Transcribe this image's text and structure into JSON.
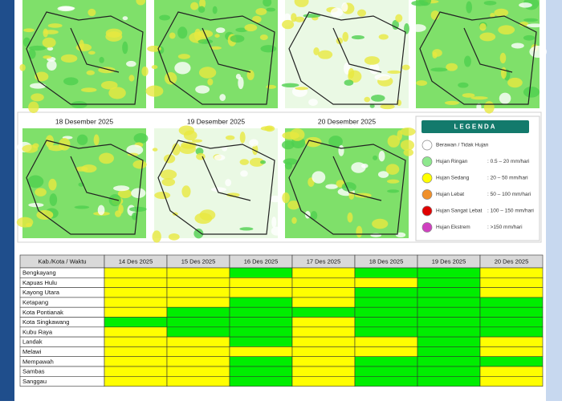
{
  "maps": {
    "titles": [
      null,
      null,
      null,
      null,
      "18 Desember 2025",
      "19 Desember 2025",
      "20 Desember 2025"
    ]
  },
  "legend": {
    "title": "LEGENDA",
    "items": [
      {
        "label": "Berawan / Tidak Hujan",
        "range": "",
        "color": "#ffffff"
      },
      {
        "label": "Hujan Ringan",
        "range": ": 0.5 – 20 mm/hari",
        "color": "#8ee88e"
      },
      {
        "label": "Hujan Sedang",
        "range": ": 20 – 50 mm/hari",
        "color": "#ffff00"
      },
      {
        "label": "Hujan Lebat",
        "range": ": 50 – 100 mm/hari",
        "color": "#f0902a"
      },
      {
        "label": "Hujan Sangat Lebat",
        "range": ": 100 – 150 mm/hari",
        "color": "#e00000"
      },
      {
        "label": "Hujan Ekstrem",
        "range": ": >150 mm/hari",
        "color": "#d040c0"
      }
    ]
  },
  "table": {
    "header": [
      "Kab./Kota / Waktu",
      "14 Des 2025",
      "15 Des 2025",
      "16 Des 2025",
      "17 Des 2025",
      "18 Des 2025",
      "19 Des 2025",
      "20 Des 2025"
    ],
    "colors": {
      "Y": "#ffff00",
      "G": "#00ee00"
    },
    "rows": [
      {
        "name": "Bengkayang",
        "cells": [
          "Y",
          "Y",
          "G",
          "Y",
          "G",
          "G",
          "Y"
        ]
      },
      {
        "name": "Kapuas Hulu",
        "cells": [
          "Y",
          "Y",
          "Y",
          "Y",
          "Y",
          "G",
          "Y"
        ]
      },
      {
        "name": "Kayong Utara",
        "cells": [
          "Y",
          "Y",
          "Y",
          "Y",
          "G",
          "G",
          "Y"
        ]
      },
      {
        "name": "Ketapang",
        "cells": [
          "Y",
          "Y",
          "G",
          "Y",
          "G",
          "G",
          "G"
        ]
      },
      {
        "name": "Kota Pontianak",
        "cells": [
          "Y",
          "G",
          "G",
          "G",
          "G",
          "G",
          "G"
        ]
      },
      {
        "name": "Kota Singkawang",
        "cells": [
          "G",
          "G",
          "G",
          "Y",
          "G",
          "G",
          "G"
        ]
      },
      {
        "name": "Kubu Raya",
        "cells": [
          "Y",
          "G",
          "G",
          "Y",
          "G",
          "G",
          "G"
        ]
      },
      {
        "name": "Landak",
        "cells": [
          "Y",
          "Y",
          "G",
          "Y",
          "Y",
          "G",
          "Y"
        ]
      },
      {
        "name": "Melawi",
        "cells": [
          "Y",
          "Y",
          "Y",
          "Y",
          "Y",
          "G",
          "Y"
        ]
      },
      {
        "name": "Mempawah",
        "cells": [
          "Y",
          "Y",
          "G",
          "Y",
          "G",
          "G",
          "G"
        ]
      },
      {
        "name": "Sambas",
        "cells": [
          "Y",
          "Y",
          "G",
          "Y",
          "G",
          "G",
          "Y"
        ]
      },
      {
        "name": "Sanggau",
        "cells": [
          "Y",
          "Y",
          "G",
          "Y",
          "G",
          "G",
          "Y"
        ]
      }
    ]
  }
}
